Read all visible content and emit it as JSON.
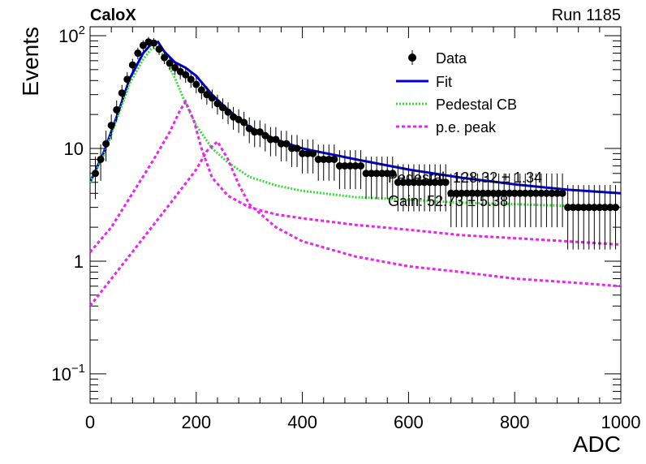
{
  "chart_data": {
    "type": "scatter",
    "experiment_label": "CaloX",
    "run_label": "Run 1185",
    "xlabel": "ADC",
    "ylabel": "Events",
    "xlim": [
      0,
      1000
    ],
    "ylim": [
      0.055,
      120
    ],
    "y_scale": "log",
    "x_ticks": [
      0,
      200,
      400,
      600,
      800,
      1000
    ],
    "y_ticks": [
      {
        "value": 0.1,
        "base": "10",
        "exp": "−1"
      },
      {
        "value": 1,
        "label": "1"
      },
      {
        "value": 10,
        "label": "10"
      },
      {
        "value": 100,
        "base": "10",
        "exp": "2"
      }
    ],
    "legend": {
      "position": "top-right",
      "entries": [
        {
          "label": "Data",
          "style": "marker",
          "color": "#000000"
        },
        {
          "label": "Fit",
          "style": "solid",
          "color": "#0000cc"
        },
        {
          "label": "Pedestal CB",
          "style": "dotted",
          "color": "#33dd33"
        },
        {
          "label": "p.e. peak",
          "style": "dashed",
          "color": "#ee22ee"
        }
      ]
    },
    "fit_info": [
      "Pedestal: 128.32 ± 1.34",
      "Gain: 52.73 ± 5.38"
    ],
    "data_points": {
      "x": [
        10,
        20,
        30,
        40,
        50,
        60,
        70,
        80,
        90,
        100,
        110,
        120,
        130,
        140,
        150,
        160,
        170,
        180,
        190,
        200,
        210,
        220,
        230,
        240,
        250,
        260,
        270,
        280,
        290,
        300,
        310,
        320,
        330,
        340,
        350,
        360,
        370,
        380,
        390,
        400,
        410,
        420,
        430,
        440,
        450,
        460,
        470,
        480,
        490,
        500,
        510,
        520,
        530,
        540,
        550,
        560,
        570,
        580,
        590,
        600,
        610,
        620,
        630,
        640,
        650,
        660,
        670,
        680,
        690,
        700,
        710,
        720,
        730,
        740,
        750,
        760,
        770,
        780,
        790,
        800,
        810,
        820,
        830,
        840,
        850,
        860,
        870,
        880,
        890,
        900,
        910,
        920,
        930,
        940,
        950,
        960,
        970,
        980,
        990
      ],
      "y": [
        6,
        8,
        11,
        16,
        22,
        31,
        41,
        55,
        70,
        82,
        88,
        86,
        76,
        64,
        57,
        52,
        48,
        45,
        41,
        37,
        33,
        30,
        28,
        25,
        23,
        21,
        19,
        18,
        17,
        15,
        14,
        14,
        13,
        12,
        12,
        11,
        11,
        10,
        10,
        9,
        9,
        9,
        8,
        8,
        8,
        8,
        7,
        7,
        7,
        7,
        7,
        6,
        6,
        6,
        6,
        6,
        6,
        5,
        5,
        5,
        5,
        5,
        5,
        5,
        5,
        5,
        5,
        4,
        4,
        4,
        4,
        4,
        4,
        4,
        4,
        4,
        4,
        4,
        4,
        4,
        4,
        4,
        4,
        4,
        4,
        4,
        4,
        4,
        4,
        3,
        3,
        3,
        3,
        3,
        3,
        3,
        3,
        3,
        3
      ]
    },
    "series": [
      {
        "name": "Fit",
        "color": "#0000cc",
        "style": "solid",
        "x": [
          0,
          25,
          50,
          75,
          100,
          115,
          128,
          140,
          160,
          180,
          200,
          230,
          260,
          300,
          350,
          400,
          500,
          600,
          700,
          800,
          900,
          1000
        ],
        "y": [
          5,
          9,
          19,
          42,
          70,
          84,
          88,
          72,
          58,
          52,
          44,
          30,
          22,
          15.5,
          12,
          10,
          8,
          6.5,
          5.5,
          4.8,
          4.3,
          4
        ]
      },
      {
        "name": "Pedestal CB",
        "color": "#33dd33",
        "style": "dotted",
        "x": [
          0,
          25,
          50,
          75,
          100,
          115,
          128,
          140,
          160,
          180,
          200,
          230,
          260,
          300,
          350,
          400,
          500,
          600,
          700,
          800,
          900,
          1000
        ],
        "y": [
          5,
          8.5,
          18,
          38,
          62,
          76,
          80,
          64,
          42,
          25,
          16,
          10,
          7.5,
          5.6,
          4.7,
          4.2,
          3.7,
          3.5,
          3.3,
          3.2,
          3.1,
          3
        ]
      },
      {
        "name": "p.e. peak",
        "color": "#ee22ee",
        "style": "dashed",
        "x": [
          0,
          40,
          80,
          120,
          150,
          170,
          180,
          195,
          210,
          230,
          260,
          300,
          350,
          400,
          500,
          600,
          700,
          800,
          900,
          1000
        ],
        "y": [
          1.2,
          2,
          4,
          8,
          14,
          22,
          26,
          18,
          10,
          5.5,
          3.8,
          3,
          2.6,
          2.4,
          2.1,
          1.9,
          1.7,
          1.6,
          1.5,
          1.4
        ]
      },
      {
        "name": "p.e. peak",
        "color": "#ee22ee",
        "style": "dashed",
        "x": [
          0,
          50,
          100,
          150,
          200,
          220,
          240,
          260,
          280,
          300,
          350,
          400,
          500,
          600,
          700,
          800,
          900,
          1000
        ],
        "y": [
          0.4,
          0.8,
          1.6,
          3.2,
          6.5,
          9.5,
          11.5,
          8,
          4.8,
          3.2,
          2,
          1.5,
          1.1,
          0.9,
          0.8,
          0.7,
          0.65,
          0.6
        ]
      }
    ]
  }
}
